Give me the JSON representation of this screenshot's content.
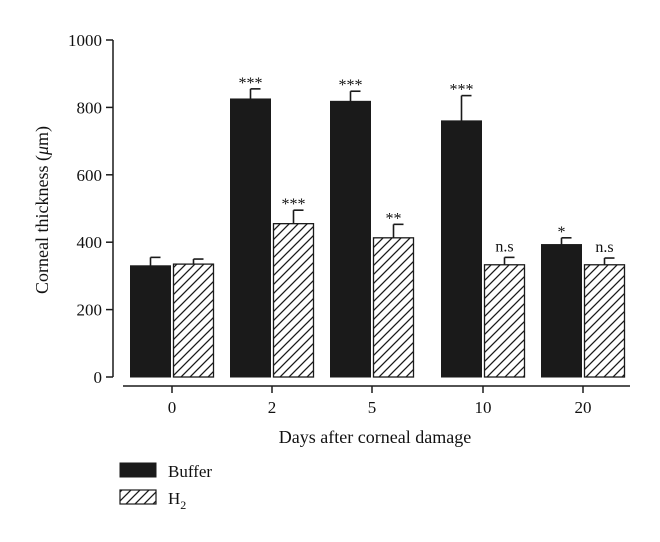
{
  "chart_data": {
    "type": "bar",
    "title": "",
    "xlabel": "Days after corneal damage",
    "ylabel_main": "Corneal thickness (",
    "ylabel_mu": "μ",
    "ylabel_unit": "m)",
    "ylim": [
      0,
      1000
    ],
    "yticks": [
      0,
      200,
      400,
      600,
      800,
      1000
    ],
    "categories": [
      "0",
      "2",
      "5",
      "10",
      "20"
    ],
    "grid": false,
    "legend_position": "bottom-left",
    "series": [
      {
        "name": "Buffer",
        "fill": "solid",
        "values": [
          330,
          825,
          818,
          760,
          393
        ],
        "errors": [
          25,
          30,
          30,
          75,
          20
        ],
        "significance": [
          "",
          "***",
          "***",
          "***",
          "*"
        ]
      },
      {
        "name": "H",
        "name_subscript": "2",
        "fill": "hatched",
        "values": [
          335,
          455,
          413,
          333,
          333
        ],
        "errors": [
          15,
          40,
          40,
          22,
          20
        ],
        "significance": [
          "",
          "***",
          "**",
          "n.s",
          "n.s"
        ]
      }
    ],
    "colors": {
      "buffer": "#1a1a1a",
      "h2_stroke": "#1a1a1a",
      "h2_fill": "#ffffff",
      "axis": "#1a1a1a"
    }
  }
}
